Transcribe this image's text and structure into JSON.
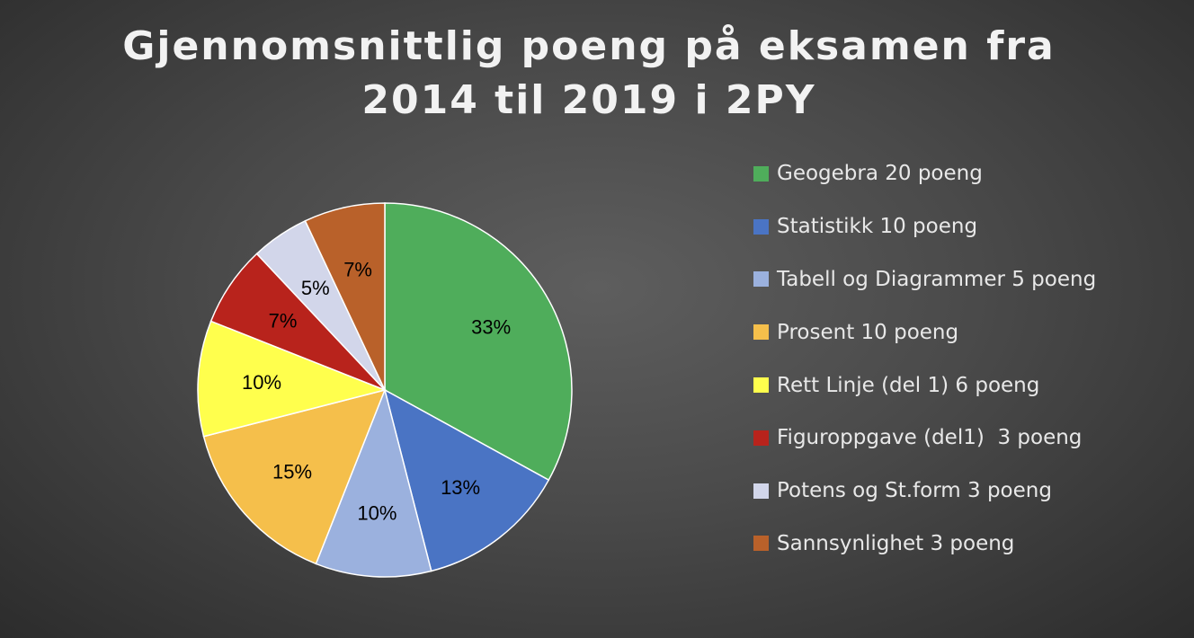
{
  "colors": {
    "background": "#474747",
    "title_text": "#f2f2f2",
    "label_text": "#000000",
    "legend_text": "#e8e8e8",
    "slice_border": "#ffffff"
  },
  "chart_data": {
    "type": "pie",
    "title_lines": [
      "Gjennomsnittlig poeng på eksamen fra",
      "2014 til 2019 i 2PY"
    ],
    "legend_position": "right",
    "slices": [
      {
        "label": "Geogebra 20 poeng",
        "value": 33,
        "data_label": "33%",
        "color": "#4fad5b"
      },
      {
        "label": "Statistikk 10 poeng",
        "value": 13,
        "data_label": "13%",
        "color": "#4a74c4"
      },
      {
        "label": "Tabell og Diagrammer 5 poeng",
        "value": 10,
        "data_label": "10%",
        "color": "#9bb1de"
      },
      {
        "label": "Prosent 10 poeng",
        "value": 15,
        "data_label": "15%",
        "color": "#f5bf4b"
      },
      {
        "label": "Rett Linje (del 1) 6 poeng",
        "value": 10,
        "data_label": "10%",
        "color": "#ffff4d"
      },
      {
        "label": "Figuroppgave (del1)  3 poeng",
        "value": 7,
        "data_label": "7%",
        "color": "#b8231c"
      },
      {
        "label": "Potens og St.form 3 poeng",
        "value": 5,
        "data_label": "5%",
        "color": "#d2d6ea"
      },
      {
        "label": "Sannsynlighet 3 poeng",
        "value": 7,
        "data_label": "7%",
        "color": "#b9612a"
      }
    ]
  }
}
